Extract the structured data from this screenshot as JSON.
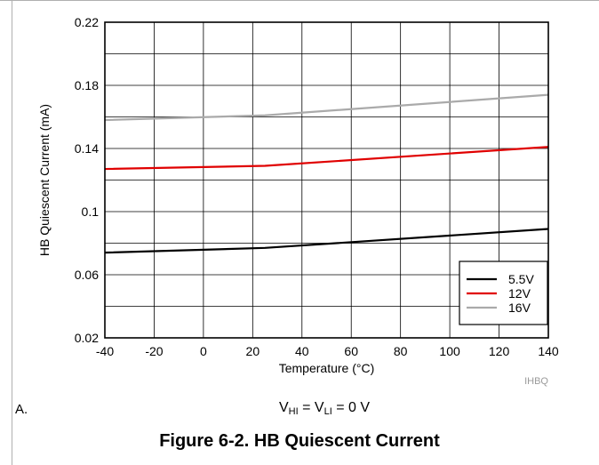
{
  "chart_data": {
    "type": "line",
    "xlabel": "Temperature (°C)",
    "ylabel": "HB Quiescent Current (mA)",
    "xlim": [
      -40,
      140
    ],
    "ylim": [
      0.02,
      0.22
    ],
    "x_ticks": [
      "-40",
      "-20",
      "0",
      "20",
      "40",
      "60",
      "80",
      "100",
      "120",
      "140"
    ],
    "y_ticks": [
      "0.02",
      "0.06",
      "0.1",
      "0.14",
      "0.18",
      "0.22"
    ],
    "grid": true,
    "legend_position": "bottom-right",
    "x": [
      -40,
      25,
      140
    ],
    "series": [
      {
        "name": "5.5V",
        "color": "#000000",
        "values": [
          0.074,
          0.077,
          0.089
        ]
      },
      {
        "name": "12V",
        "color": "#e00000",
        "values": [
          0.127,
          0.129,
          0.141
        ]
      },
      {
        "name": "16V",
        "color": "#aaaaaa",
        "values": [
          0.158,
          0.161,
          0.174
        ]
      }
    ]
  },
  "figure_code": "IHBQ",
  "note": {
    "label": "A.",
    "v1": "V",
    "sub1": "HI",
    "eq1": " = V",
    "sub2": "LI",
    "eq2": " = 0 V"
  },
  "caption": "Figure 6-2. HB Quiescent Current"
}
